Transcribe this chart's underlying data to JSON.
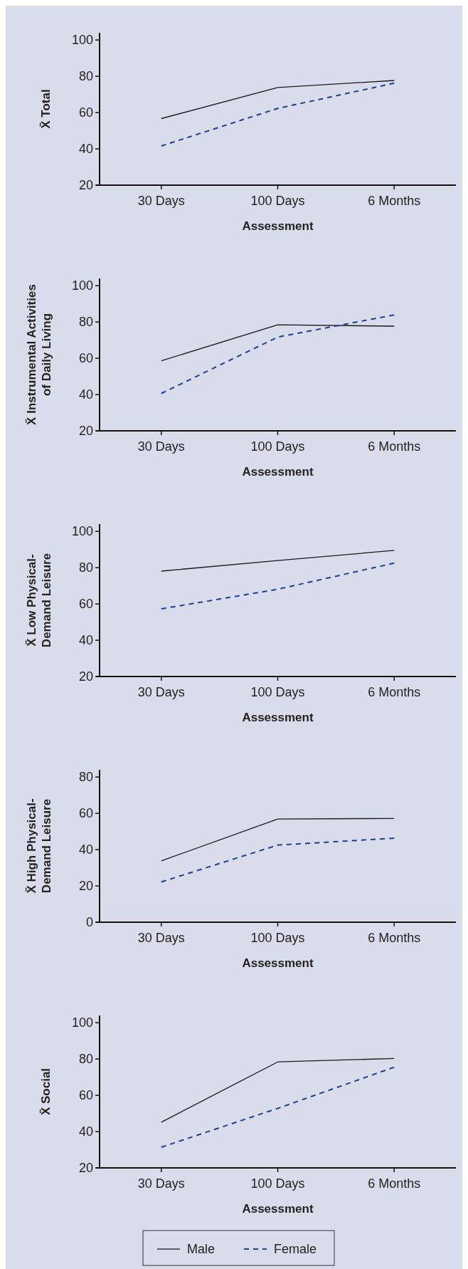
{
  "chart_data": [
    {
      "type": "line",
      "ylabel": "X̄ Total",
      "xlabel": "Assessment",
      "categories": [
        "30 Days",
        "100 Days",
        "6 Months"
      ],
      "ylim": [
        20,
        104
      ],
      "yticks": [
        20,
        40,
        60,
        80,
        100
      ],
      "grid": false,
      "legend": false,
      "series": [
        {
          "color": "#1a1a1a",
          "line_style": "solid",
          "values": [
            56.7,
            73.8,
            77.7
          ]
        },
        {
          "color": "#1f3f8f",
          "line_style": "dashed",
          "values": [
            41.6,
            62.3,
            76.2
          ]
        }
      ]
    },
    {
      "type": "line",
      "ylabel": "X̄ Instrumental Activities of Daily Living",
      "xlabel": "Assessment",
      "categories": [
        "30 Days",
        "100 Days",
        "6 Months"
      ],
      "ylim": [
        20,
        104
      ],
      "yticks": [
        20,
        40,
        60,
        80,
        100
      ],
      "grid": false,
      "legend": false,
      "series": [
        {
          "color": "#1a1a1a",
          "line_style": "solid",
          "values": [
            58.6,
            78.4,
            77.7
          ]
        },
        {
          "color": "#1f3f8f",
          "line_style": "dashed",
          "values": [
            40.6,
            71.7,
            83.9
          ]
        }
      ]
    },
    {
      "type": "line",
      "ylabel": "X̄ Low Physical-Demand Leisure",
      "xlabel": "Assessment",
      "categories": [
        "30 Days",
        "100 Days",
        "6 Months"
      ],
      "ylim": [
        20,
        104
      ],
      "yticks": [
        20,
        40,
        60,
        80,
        100
      ],
      "grid": false,
      "legend": false,
      "series": [
        {
          "color": "#1a1a1a",
          "line_style": "solid",
          "values": [
            78.1,
            83.9,
            89.5
          ]
        },
        {
          "color": "#1f3f8f",
          "line_style": "dashed",
          "values": [
            57.3,
            68.1,
            82.5
          ]
        }
      ]
    },
    {
      "type": "line",
      "ylabel": "X̄ High Physical-Demand Leisure",
      "xlabel": "Assessment",
      "categories": [
        "30 Days",
        "100 Days",
        "6 Months"
      ],
      "ylim": [
        0,
        84
      ],
      "yticks": [
        0,
        20,
        40,
        60,
        80
      ],
      "grid": false,
      "legend": false,
      "series": [
        {
          "color": "#1a1a1a",
          "line_style": "solid",
          "values": [
            33.8,
            56.9,
            57.2
          ]
        },
        {
          "color": "#1f3f8f",
          "line_style": "dashed",
          "values": [
            22.2,
            42.5,
            46.3
          ]
        }
      ]
    },
    {
      "type": "line",
      "ylabel": "X̄ Social",
      "xlabel": "Assessment",
      "categories": [
        "30 Days",
        "100 Days",
        "6 Months"
      ],
      "ylim": [
        20,
        104
      ],
      "yticks": [
        20,
        40,
        60,
        80,
        100
      ],
      "grid": false,
      "legend": "bottom",
      "series": [
        {
          "name": "Male",
          "color": "#1a1a1a",
          "line_style": "solid",
          "values": [
            45.2,
            78.4,
            80.3
          ]
        },
        {
          "name": "Female",
          "color": "#1f3f8f",
          "line_style": "dashed",
          "values": [
            31.4,
            52.8,
            75.5
          ]
        }
      ]
    }
  ]
}
